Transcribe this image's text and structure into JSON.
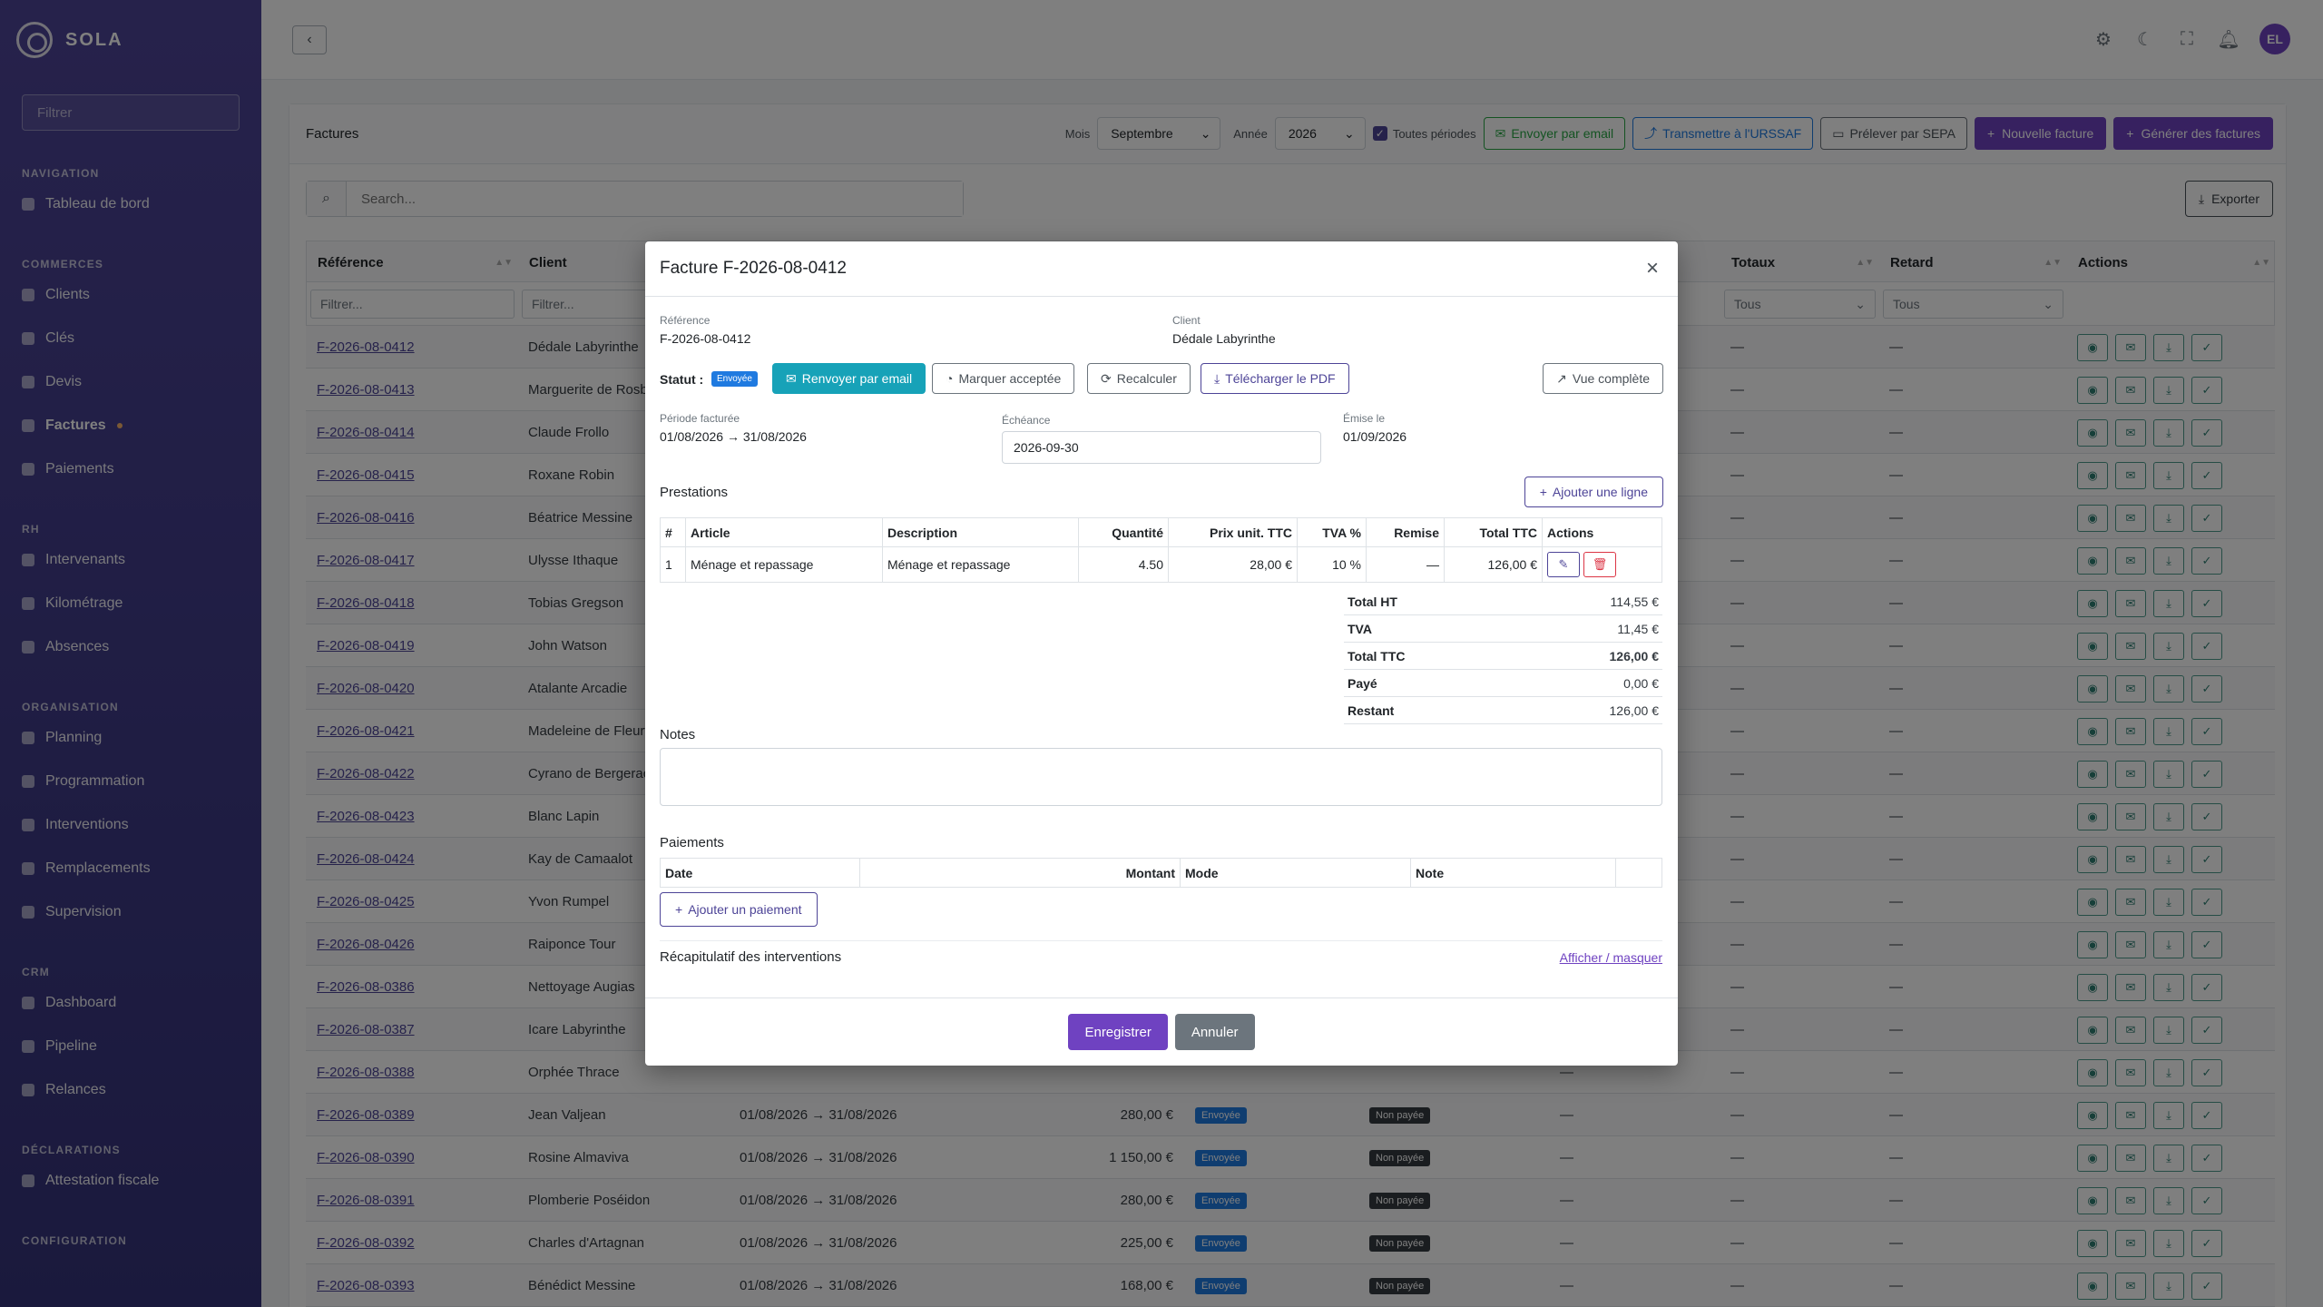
{
  "app": {
    "name": "SOLA"
  },
  "sidebar": {
    "filter_placeholder": "Filtrer",
    "sections": [
      {
        "title": "NAVIGATION",
        "items": [
          {
            "label": "Tableau de bord",
            "icon": "dashboard-icon"
          }
        ]
      },
      {
        "title": "COMMERCES",
        "items": [
          {
            "label": "Clients",
            "icon": "users-icon"
          },
          {
            "label": "Clés",
            "icon": "key-icon"
          },
          {
            "label": "Devis",
            "icon": "file-icon"
          },
          {
            "label": "Factures",
            "icon": "invoice-icon",
            "active": true
          },
          {
            "label": "Paiements",
            "icon": "dollar-icon"
          }
        ]
      },
      {
        "title": "RH",
        "items": [
          {
            "label": "Intervenants",
            "icon": "users-icon"
          },
          {
            "label": "Kilométrage",
            "icon": "send-icon"
          },
          {
            "label": "Absences",
            "icon": "sun-icon"
          }
        ]
      },
      {
        "title": "ORGANISATION",
        "items": [
          {
            "label": "Planning",
            "icon": "calendar-icon"
          },
          {
            "label": "Programmation",
            "icon": "repeat-icon"
          },
          {
            "label": "Interventions",
            "icon": "clock-icon"
          },
          {
            "label": "Remplacements",
            "icon": "shuffle-icon"
          },
          {
            "label": "Supervision",
            "icon": "map-icon"
          }
        ]
      },
      {
        "title": "CRM",
        "items": [
          {
            "label": "Dashboard",
            "icon": "chart-icon"
          },
          {
            "label": "Pipeline",
            "icon": "target-icon"
          },
          {
            "label": "Relances",
            "icon": "bell-icon"
          }
        ]
      },
      {
        "title": "DÉCLARATIONS",
        "items": [
          {
            "label": "Attestation fiscale",
            "icon": "award-icon"
          }
        ]
      },
      {
        "title": "CONFIGURATION",
        "items": []
      }
    ]
  },
  "topbar": {
    "avatar_initials": "EL"
  },
  "page": {
    "title": "Factures",
    "mois_label": "Mois",
    "mois_value": "Septembre",
    "annee_label": "Année",
    "annee_value": "2026",
    "toutes_periodes": "Toutes périodes",
    "btn_email": "Envoyer par email",
    "btn_urssaf": "Transmettre à l'URSSAF",
    "btn_sepa": "Prélever par SEPA",
    "btn_new": "Nouvelle facture",
    "btn_generate": "Générer des factures",
    "search_placeholder": "Search...",
    "export": "Exporter"
  },
  "table": {
    "columns": [
      "Référence",
      "Client",
      "Totaux",
      "Retard",
      "Actions"
    ],
    "filter_placeholder": "Filtrer...",
    "tous": "Tous",
    "dash": "—",
    "rows": [
      {
        "ref": "F-2026-08-0412",
        "client": "Dédale Labyrinthe"
      },
      {
        "ref": "F-2026-08-0413",
        "client": "Marguerite de Rosbif"
      },
      {
        "ref": "F-2026-08-0414",
        "client": "Claude Frollo"
      },
      {
        "ref": "F-2026-08-0415",
        "client": "Roxane Robin"
      },
      {
        "ref": "F-2026-08-0416",
        "client": "Béatrice Messine"
      },
      {
        "ref": "F-2026-08-0417",
        "client": "Ulysse Ithaque"
      },
      {
        "ref": "F-2026-08-0418",
        "client": "Tobias Gregson"
      },
      {
        "ref": "F-2026-08-0419",
        "client": "John Watson"
      },
      {
        "ref": "F-2026-08-0420",
        "client": "Atalante Arcadie"
      },
      {
        "ref": "F-2026-08-0421",
        "client": "Madeleine de Fleurville"
      },
      {
        "ref": "F-2026-08-0422",
        "client": "Cyrano de Bergerac"
      },
      {
        "ref": "F-2026-08-0423",
        "client": "Blanc Lapin"
      },
      {
        "ref": "F-2026-08-0424",
        "client": "Kay de Camaalot"
      },
      {
        "ref": "F-2026-08-0425",
        "client": "Yvon Rumpel"
      },
      {
        "ref": "F-2026-08-0426",
        "client": "Raiponce Tour"
      },
      {
        "ref": "F-2026-08-0386",
        "client": "Nettoyage Augias"
      },
      {
        "ref": "F-2026-08-0387",
        "client": "Icare Labyrinthe"
      },
      {
        "ref": "F-2026-08-0388",
        "client": "Orphée Thrace"
      },
      {
        "ref": "F-2026-08-0389",
        "client": "Jean Valjean",
        "period": "01/08/2026 → 31/08/2026",
        "amount": "280,00 €",
        "status": "Envoyée",
        "pay": "Non payée"
      },
      {
        "ref": "F-2026-08-0390",
        "client": "Rosine Almaviva",
        "period": "01/08/2026 → 31/08/2026",
        "amount": "1 150,00 €",
        "status": "Envoyée",
        "pay": "Non payée"
      },
      {
        "ref": "F-2026-08-0391",
        "client": "Plomberie Poséidon",
        "period": "01/08/2026 → 31/08/2026",
        "amount": "280,00 €",
        "status": "Envoyée",
        "pay": "Non payée"
      },
      {
        "ref": "F-2026-08-0392",
        "client": "Charles d'Artagnan",
        "period": "01/08/2026 → 31/08/2026",
        "amount": "225,00 €",
        "status": "Envoyée",
        "pay": "Non payée"
      },
      {
        "ref": "F-2026-08-0393",
        "client": "Bénédict Messine",
        "period": "01/08/2026 → 31/08/2026",
        "amount": "168,00 €",
        "status": "Envoyée",
        "pay": "Non payée"
      }
    ]
  },
  "modal": {
    "title": "Facture F-2026-08-0412",
    "ref_label": "Référence",
    "ref_value": "F-2026-08-0412",
    "client_label": "Client",
    "client_value": "Dédale Labyrinthe",
    "statut_label": "Statut :",
    "statut_badge": "Envoyée",
    "btn_resend": "Renvoyer par email",
    "btn_accept": "Marquer acceptée",
    "btn_recalc": "Recalculer",
    "btn_pdf": "Télécharger le PDF",
    "btn_full": "Vue complète",
    "periode_label": "Période facturée",
    "periode_value": "01/08/2026 → 31/08/2026",
    "echeance_label": "Échéance",
    "echeance_value": "2026-09-30",
    "emise_label": "Émise le",
    "emise_value": "01/09/2026",
    "prestations_title": "Prestations",
    "btn_add_line": "Ajouter une ligne",
    "pcols": [
      "#",
      "Article",
      "Description",
      "Quantité",
      "Prix unit. TTC",
      "TVA %",
      "Remise",
      "Total TTC",
      "Actions"
    ],
    "prow": {
      "n": "1",
      "article": "Ménage et repassage",
      "description": "Ménage et repassage",
      "qty": "4.50",
      "price": "28,00 €",
      "tva": "10 %",
      "remise": "—",
      "total": "126,00 €"
    },
    "totals": [
      {
        "label": "Total HT",
        "value": "114,55 €"
      },
      {
        "label": "TVA",
        "value": "11,45 €"
      },
      {
        "label": "Total TTC",
        "value": "126,00 €"
      },
      {
        "label": "Payé",
        "value": "0,00 €"
      },
      {
        "label": "Restant",
        "value": "126,00 €"
      }
    ],
    "notes_title": "Notes",
    "paiements_title": "Paiements",
    "paycols": [
      "Date",
      "Montant",
      "Mode",
      "Note"
    ],
    "btn_add_pay": "Ajouter un paiement",
    "recap_title": "Récapitulatif des interventions",
    "recap_link": "Afficher / masquer",
    "btn_save": "Enregistrer",
    "btn_cancel": "Annuler"
  }
}
